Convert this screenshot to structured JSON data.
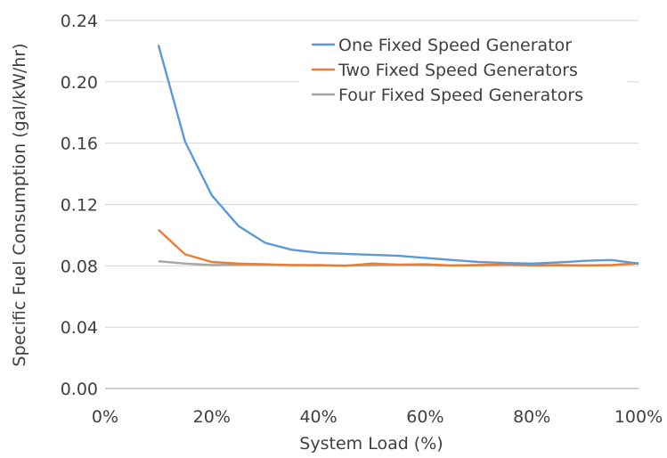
{
  "chart_data": {
    "type": "line",
    "title": "",
    "xlabel": "System Load (%)",
    "ylabel": "Specific Fuel Consumption (gal/kW/hr)",
    "xlim": [
      0,
      100
    ],
    "ylim": [
      0,
      0.24
    ],
    "x_ticks": [
      0,
      20,
      40,
      60,
      80,
      100
    ],
    "x_tick_labels": [
      "0%",
      "20%",
      "40%",
      "60%",
      "80%",
      "100%"
    ],
    "y_ticks": [
      0,
      0.04,
      0.08,
      0.12,
      0.16,
      0.2,
      0.24
    ],
    "y_tick_labels": [
      "0.00",
      "0.04",
      "0.08",
      "0.12",
      "0.16",
      "0.20",
      "0.24"
    ],
    "grid": "horizontal",
    "legend_position": "top-right",
    "series": [
      {
        "name": "One Fixed Speed Generator",
        "color": "#5b9bd5",
        "x": [
          10,
          15,
          20,
          25,
          30,
          35,
          40,
          45,
          50,
          55,
          60,
          65,
          70,
          75,
          80,
          85,
          90,
          95,
          100
        ],
        "values": [
          0.224,
          0.161,
          0.126,
          0.106,
          0.095,
          0.0905,
          0.0885,
          0.0878,
          0.0872,
          0.0865,
          0.0852,
          0.0838,
          0.0825,
          0.0818,
          0.0815,
          0.0822,
          0.0833,
          0.0838,
          0.0815
        ]
      },
      {
        "name": "Two Fixed Speed Generators",
        "color": "#ed7d31",
        "x": [
          10,
          15,
          20,
          25,
          30,
          35,
          40,
          45,
          50,
          55,
          60,
          65,
          70,
          75,
          80,
          85,
          90,
          95,
          100
        ],
        "values": [
          0.1035,
          0.0875,
          0.0825,
          0.0815,
          0.081,
          0.0805,
          0.0805,
          0.08,
          0.0815,
          0.0808,
          0.081,
          0.0802,
          0.0805,
          0.0808,
          0.0803,
          0.0805,
          0.0803,
          0.0805,
          0.0815
        ]
      },
      {
        "name": "Four Fixed Speed Generators",
        "color": "#a5a5a5",
        "x": [
          10,
          15,
          20,
          25,
          30,
          35,
          40,
          45,
          50,
          55,
          60,
          65,
          70,
          75,
          80,
          85,
          90,
          95,
          100
        ],
        "values": [
          0.083,
          0.0815,
          0.0805,
          0.0808,
          0.0806,
          0.0804,
          0.0803,
          0.0802,
          0.0804,
          0.0806,
          0.0805,
          0.0803,
          0.0804,
          0.0806,
          0.0805,
          0.0803,
          0.0802,
          0.0805,
          0.0818
        ]
      }
    ]
  }
}
